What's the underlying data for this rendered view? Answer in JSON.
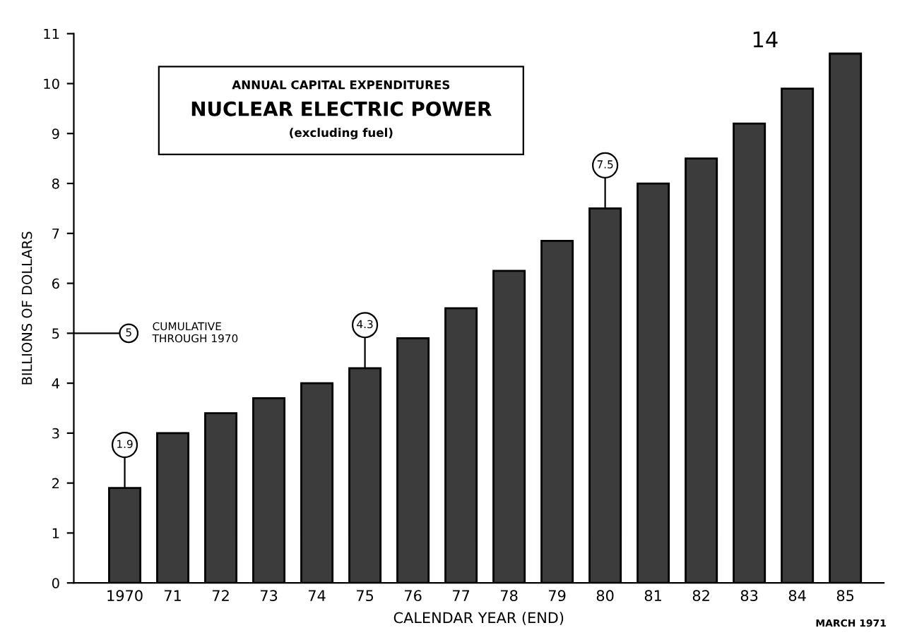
{
  "chart_data": {
    "type": "bar",
    "title": "NUCLEAR ELECTRIC POWER",
    "subtitle": "(excluding fuel)",
    "xlabel": "CALENDAR YEAR (END)",
    "ylabel": "BILLIONS OF DOLLARS",
    "categories": [
      "1970",
      "71",
      "72",
      "73",
      "74",
      "75",
      "76",
      "77",
      "78",
      "79",
      "80",
      "81",
      "82",
      "83",
      "84",
      "85"
    ],
    "values": [
      1.9,
      3.0,
      3.4,
      3.7,
      4.0,
      4.3,
      4.9,
      5.5,
      6.25,
      6.85,
      7.5,
      8.0,
      8.5,
      9.2,
      9.9,
      10.6
    ],
    "value_labels": [
      "1.9",
      null,
      null,
      null,
      null,
      "4.3",
      null,
      null,
      null,
      null,
      "7.5",
      null,
      null,
      null,
      null,
      null
    ],
    "color": "#3c3c3c",
    "ylim": [
      0,
      11
    ],
    "yticks": [
      0,
      1,
      2,
      3,
      4,
      5,
      6,
      7,
      8,
      9,
      10,
      11
    ],
    "grid": false,
    "annotations": [
      "ANNUAL CAPITAL EXPENDITURES",
      {
        "text": "5",
        "y": 5
      },
      "CUMULATIVE\nTHROUGH 1970",
      "14",
      "MARCH 1971"
    ]
  }
}
